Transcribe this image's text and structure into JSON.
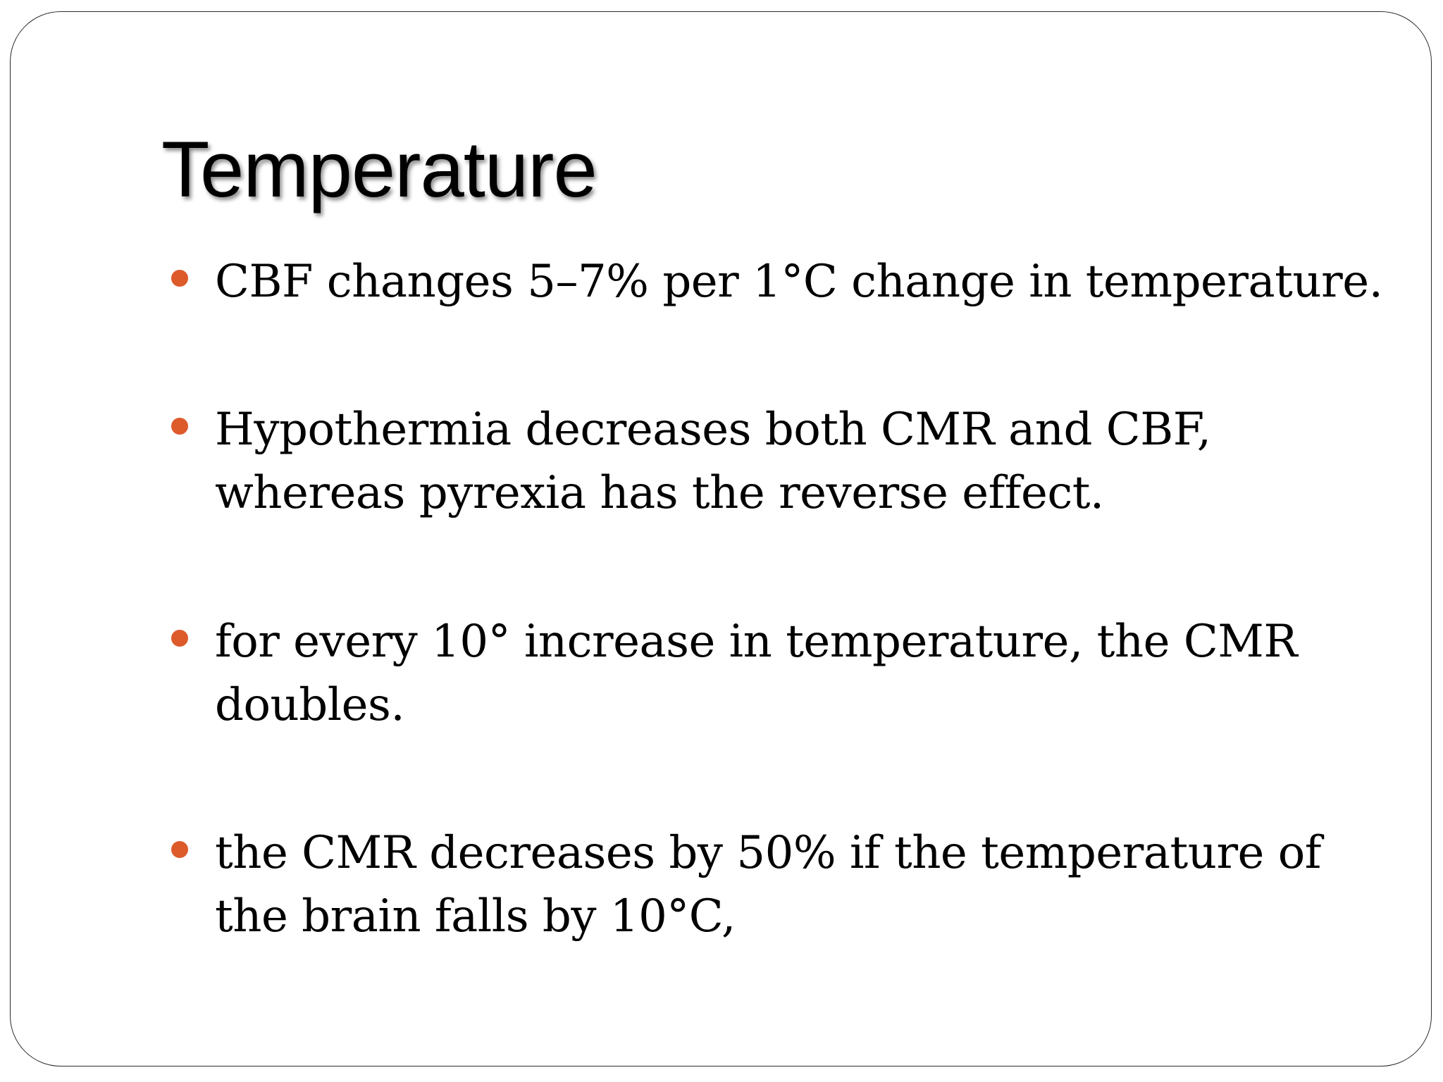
{
  "slide": {
    "title": "Temperature",
    "bullets": [
      {
        "text": "CBF changes 5–7% per 1°C change in temperature."
      },
      {
        "text": "Hypothermia decreases both CMR and CBF, whereas pyrexia has the reverse effect."
      },
      {
        "text": "for every 10° increase in temperature, the CMR doubles."
      },
      {
        "text": "the CMR decreases by 50% if the temperature of the brain falls by 10°C,"
      }
    ],
    "colors": {
      "bullet": "#dd5a2b",
      "text": "#000000",
      "border": "#2b2b2b"
    }
  }
}
